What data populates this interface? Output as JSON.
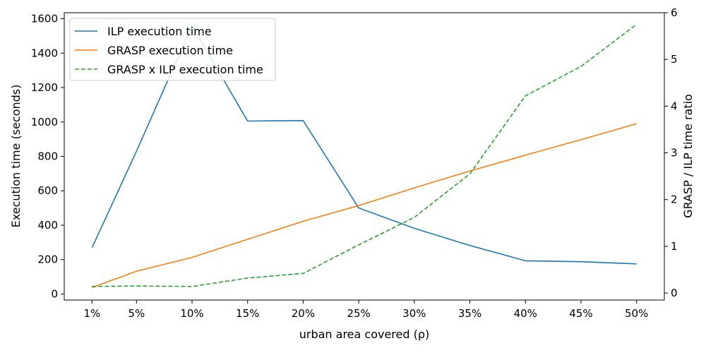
{
  "chart_data": {
    "type": "line",
    "x_categories": [
      "1%",
      "5%",
      "10%",
      "15%",
      "20%",
      "25%",
      "30%",
      "35%",
      "40%",
      "45%",
      "50%"
    ],
    "x_positions": [
      1,
      5,
      10,
      15,
      20,
      25,
      30,
      35,
      40,
      45,
      50
    ],
    "xlabel": "urban area covered (ρ)",
    "xlim": [
      -1.5,
      52.5
    ],
    "left_axis": {
      "label": "Execution time (seconds)",
      "ylim": [
        -35,
        1635
      ],
      "ticks": [
        0,
        200,
        400,
        600,
        800,
        1000,
        1200,
        1400,
        1600
      ]
    },
    "right_axis": {
      "label": "GRASP / ILP time ratio",
      "ylim": [
        -0.15,
        6.0
      ],
      "ticks": [
        0,
        1,
        2,
        3,
        4,
        5,
        6
      ]
    },
    "series": [
      {
        "name": "ILP execution time",
        "axis": "left",
        "color": "#1f77b4",
        "dash": "solid",
        "values": [
          270,
          830,
          1560,
          1005,
          1008,
          500,
          382,
          282,
          193,
          188,
          175
        ]
      },
      {
        "name": "GRASP execution time",
        "axis": "left",
        "color": "#ff7f0e",
        "dash": "solid",
        "values": [
          38,
          133,
          213,
          318,
          423,
          514,
          617,
          715,
          807,
          897,
          990
        ]
      },
      {
        "name": "GRASP x ILP execution time",
        "axis": "right",
        "color": "#2ca02c",
        "dash": "dashed",
        "values": [
          0.14,
          0.15,
          0.14,
          0.32,
          0.42,
          1.03,
          1.62,
          2.55,
          4.22,
          4.85,
          5.75
        ]
      }
    ],
    "legend": {
      "position": "top-left"
    }
  }
}
